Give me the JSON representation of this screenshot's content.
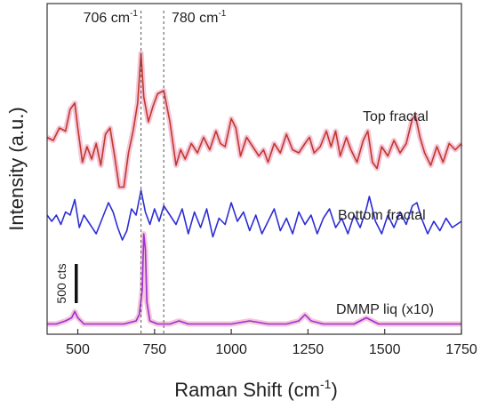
{
  "chart_data": {
    "type": "line",
    "xlabel": "Raman Shift (cm",
    "xlabel_sup": "-1",
    "xlabel_end": ")",
    "ylabel": "Intensity (a.u.)",
    "xlim": [
      400,
      1750
    ],
    "ylim": [
      0,
      100
    ],
    "x_ticks": [
      500,
      750,
      1000,
      1250,
      1500,
      1750
    ],
    "grid": false,
    "scale_bar": {
      "label": "500 cts",
      "value": 500
    },
    "reference_lines": [
      {
        "x": 706,
        "label": "706 cm",
        "sup": "-1"
      },
      {
        "x": 780,
        "label": "780 cm",
        "sup": "-1"
      }
    ],
    "series": [
      {
        "name": "Top fractal",
        "color": "#c0392b",
        "halo": "#f4b8cf",
        "x": [
          400,
          420,
          440,
          460,
          475,
          490,
          500,
          515,
          530,
          545,
          560,
          575,
          590,
          605,
          620,
          635,
          650,
          665,
          680,
          695,
          706,
          715,
          730,
          745,
          760,
          780,
          800,
          820,
          835,
          850,
          870,
          890,
          910,
          930,
          950,
          965,
          980,
          1000,
          1015,
          1030,
          1050,
          1070,
          1090,
          1105,
          1120,
          1140,
          1160,
          1180,
          1200,
          1220,
          1240,
          1255,
          1270,
          1290,
          1310,
          1325,
          1340,
          1355,
          1375,
          1390,
          1410,
          1430,
          1445,
          1460,
          1475,
          1490,
          1510,
          1530,
          1550,
          1570,
          1590,
          1600,
          1615,
          1630,
          1650,
          1670,
          1690,
          1710,
          1730,
          1750
        ],
        "y": [
          61,
          60,
          64,
          63,
          70,
          72,
          64,
          53,
          58,
          54,
          59,
          52,
          62,
          64,
          55,
          45,
          45,
          56,
          63,
          72,
          88,
          74,
          66,
          71,
          75,
          76,
          66,
          52,
          57,
          54,
          59,
          56,
          61,
          57,
          63,
          59,
          58,
          67,
          64,
          55,
          61,
          58,
          55,
          57,
          53,
          59,
          56,
          62,
          57,
          56,
          59,
          61,
          56,
          58,
          63,
          58,
          63,
          55,
          61,
          57,
          53,
          60,
          63,
          53,
          51,
          58,
          55,
          60,
          56,
          59,
          67,
          68,
          61,
          56,
          52,
          58,
          53,
          59,
          57,
          59
        ]
      },
      {
        "name": "Bottom fractal",
        "color": "#2d2dd6",
        "halo": "#ffffff",
        "x": [
          400,
          415,
          430,
          445,
          460,
          475,
          490,
          505,
          520,
          540,
          560,
          580,
          600,
          615,
          630,
          645,
          660,
          675,
          690,
          706,
          720,
          735,
          750,
          765,
          780,
          800,
          820,
          840,
          860,
          880,
          900,
          920,
          940,
          960,
          980,
          1000,
          1020,
          1040,
          1060,
          1080,
          1100,
          1120,
          1140,
          1160,
          1180,
          1200,
          1220,
          1240,
          1260,
          1280,
          1300,
          1320,
          1340,
          1360,
          1380,
          1400,
          1420,
          1440,
          1450,
          1470,
          1490,
          1510,
          1530,
          1550,
          1570,
          1590,
          1605,
          1620,
          1640,
          1660,
          1680,
          1700,
          1720,
          1750
        ],
        "y": [
          36,
          34,
          36,
          33,
          37,
          36,
          41,
          32,
          36,
          33,
          30,
          35,
          40,
          37,
          32,
          28,
          31,
          38,
          36,
          44,
          37,
          33,
          38,
          34,
          39,
          36,
          33,
          38,
          30,
          37,
          32,
          38,
          29,
          35,
          33,
          40,
          34,
          37,
          31,
          36,
          30,
          34,
          38,
          31,
          35,
          30,
          37,
          33,
          36,
          30,
          35,
          38,
          32,
          35,
          30,
          36,
          32,
          38,
          42,
          34,
          30,
          36,
          32,
          37,
          33,
          39,
          40,
          35,
          30,
          34,
          31,
          35,
          32,
          34
        ]
      },
      {
        "name": "DMMP liq (x10)",
        "color": "#9b30d8",
        "halo": "#f4b8cf",
        "x": [
          400,
          430,
          460,
          480,
          490,
          500,
          520,
          560,
          600,
          650,
          690,
          700,
          710,
          715,
          720,
          725,
          735,
          760,
          800,
          830,
          860,
          900,
          960,
          1000,
          1060,
          1120,
          1180,
          1220,
          1240,
          1260,
          1300,
          1360,
          1400,
          1420,
          1440,
          1460,
          1480,
          1520,
          1580,
          1650,
          1700,
          1750
        ],
        "y": [
          1,
          1,
          2,
          3,
          5,
          3,
          1,
          1,
          1,
          1,
          2,
          4,
          12,
          30,
          25,
          8,
          2,
          1,
          1,
          2,
          1,
          1,
          1,
          1,
          2,
          1,
          1,
          2,
          4,
          2,
          1,
          1,
          1,
          2,
          3,
          2,
          1,
          1,
          1,
          1,
          1,
          1
        ]
      }
    ]
  }
}
